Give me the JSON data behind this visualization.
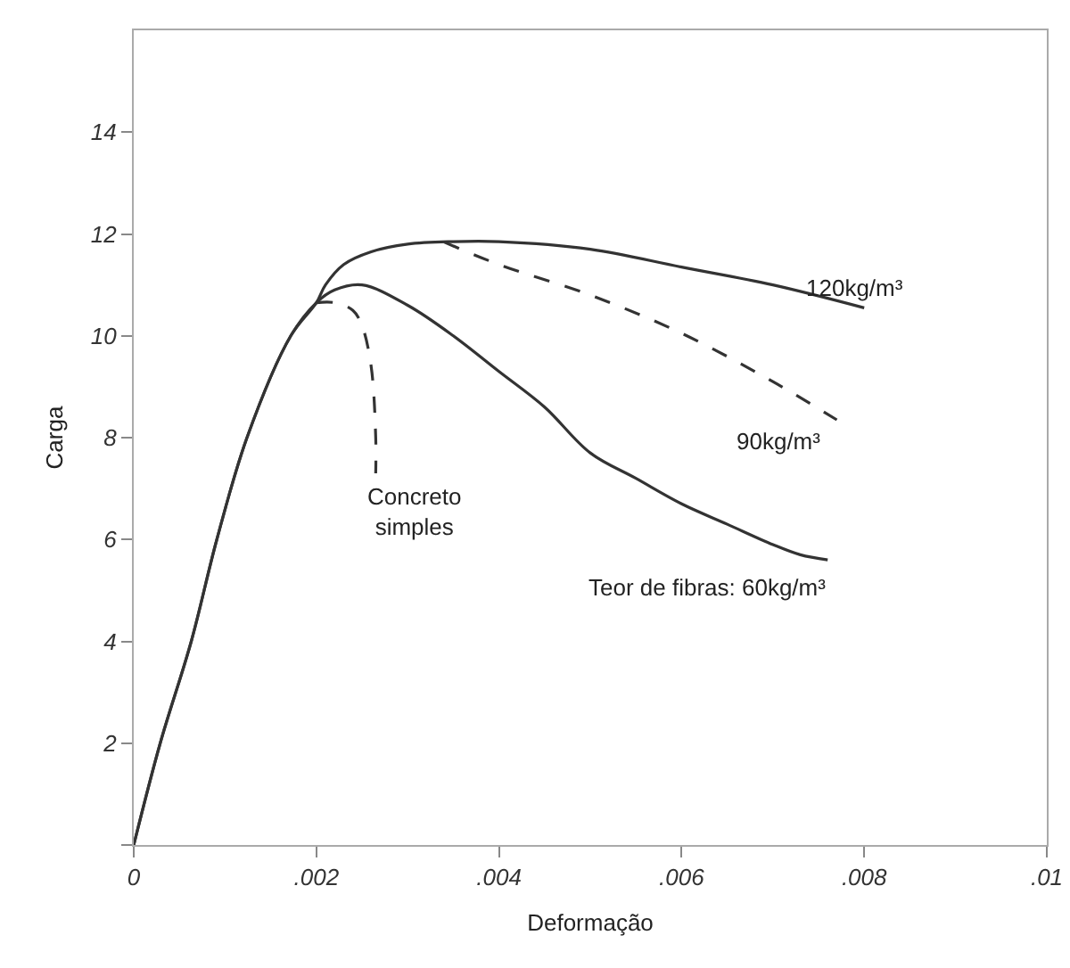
{
  "chart_data": {
    "type": "line",
    "xlabel": "Deformação",
    "ylabel": "Carga",
    "xlim": [
      0,
      0.01
    ],
    "ylim": [
      0,
      16
    ],
    "xticks": [
      0,
      {
        "value": 0.002,
        "label": ".002"
      },
      {
        "value": 0.004,
        "label": ".004"
      },
      {
        "value": 0.006,
        "label": ".006"
      },
      {
        "value": 0.008,
        "label": ".008"
      },
      {
        "value": 0.01,
        "label": ".01"
      }
    ],
    "yticks": [
      {
        "value": 0,
        "label": null
      },
      2,
      4,
      6,
      8,
      10,
      12,
      14
    ],
    "grid": false,
    "legend": false,
    "marker": "none",
    "series": [
      {
        "name": "Teor de fibras: 60kg/m³",
        "color": "#333333",
        "line_style": "solid",
        "x": [
          0,
          0.00029,
          0.00063,
          0.00091,
          0.00124,
          0.00172,
          0.002,
          0.0022,
          0.0025,
          0.003,
          0.0035,
          0.004,
          0.0045,
          0.005,
          0.0055,
          0.006,
          0.0065,
          0.007,
          0.0073,
          0.0076
        ],
        "values": [
          0,
          2,
          4,
          6,
          8,
          10,
          10.65,
          10.9,
          11.0,
          10.6,
          10.0,
          9.3,
          8.6,
          7.7,
          7.2,
          6.7,
          6.3,
          5.9,
          5.7,
          5.6
        ]
      },
      {
        "name": "120kg/m³",
        "color": "#333333",
        "line_style": "solid",
        "x": [
          0,
          0.00029,
          0.00063,
          0.00091,
          0.00124,
          0.00172,
          0.002,
          0.0021,
          0.0023,
          0.0026,
          0.003,
          0.0035,
          0.004,
          0.005,
          0.006,
          0.007,
          0.008
        ],
        "values": [
          0,
          2,
          4,
          6,
          8,
          10,
          10.65,
          11.0,
          11.4,
          11.65,
          11.8,
          11.85,
          11.85,
          11.7,
          11.35,
          11.0,
          10.55
        ]
      },
      {
        "name": "90kg/m³",
        "color": "#333333",
        "line_style": "dashed",
        "x": [
          0.0034,
          0.004,
          0.005,
          0.006,
          0.007,
          0.0077
        ],
        "values": [
          11.84,
          11.4,
          10.8,
          10.05,
          9.1,
          8.35
        ]
      },
      {
        "name": "Concreto\nsimples",
        "color": "#333333",
        "line_style": "dashed",
        "x": [
          0.002,
          0.0022,
          0.0024,
          0.0025,
          0.0026,
          0.00265,
          0.00265
        ],
        "values": [
          10.65,
          10.65,
          10.5,
          10.2,
          9.4,
          8.0,
          7.3
        ]
      }
    ]
  }
}
